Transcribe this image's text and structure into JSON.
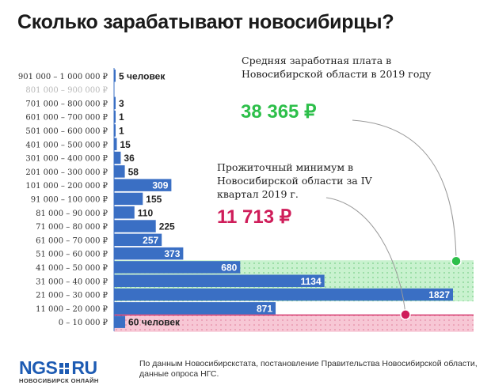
{
  "title": "Сколько зарабатывают новосибирцы?",
  "annotations": {
    "average": {
      "text": "Средняя заработная плата в Новосибирской области в 2019 году",
      "value": "38 365 ₽",
      "color": "#2dbf4a"
    },
    "minimum": {
      "text": "Прожиточный минимум в Новосибирской области за IV квартал 2019 г.",
      "value": "11 713 ₽",
      "color": "#cf1d5a"
    }
  },
  "footer": {
    "logo": "NGS.RU",
    "logo_sub": "НОВОСИБИРСК ОНЛАЙН",
    "source": "По данным Новосибирскстата, постановление Правительства Новосибирской области, данные опроса НГС."
  },
  "chart_data": {
    "type": "bar",
    "orientation": "horizontal",
    "categories": [
      "901 000 – 1 000 000 ₽",
      "801 000 – 900 000 ₽",
      "701 000 – 800 000 ₽",
      "601 000 – 700 000 ₽",
      "501 000 – 600 000 ₽",
      "401 000 – 500 000 ₽",
      "301 000 – 400 000 ₽",
      "201 000 – 300 000 ₽",
      "101 000 – 200 000 ₽",
      "91 000 – 100 000 ₽",
      "81 000 – 90 000 ₽",
      "71 000 – 80 000 ₽",
      "61 000 – 70 000 ₽",
      "51 000 – 60 000 ₽",
      "41 000 – 50 000 ₽",
      "31 000 – 40 000 ₽",
      "21 000 – 30 000 ₽",
      "11 000 – 20 000 ₽",
      "0 – 10 000 ₽"
    ],
    "values": [
      5,
      0,
      3,
      1,
      1,
      15,
      36,
      58,
      309,
      155,
      110,
      225,
      257,
      373,
      680,
      1134,
      1827,
      871,
      60
    ],
    "value_labels": [
      "5 человек",
      "",
      "3",
      "1",
      "1",
      "15",
      "36",
      "58",
      "309",
      "155",
      "110",
      "225",
      "257",
      "373",
      "680",
      "1134",
      "1827",
      "871",
      "60 человек"
    ],
    "muted_category_index": 1,
    "bar_color": "#3a6fc4",
    "average_band": {
      "from_category": "41 000 – 50 000 ₽",
      "to_category": "21 000 – 30 000 ₽",
      "color": "#c9f2cf"
    },
    "minimum_band": {
      "from_category": "0 – 10 000 ₽",
      "to_category": "0 – 10 000 ₽",
      "color": "#f7c7d5"
    }
  }
}
